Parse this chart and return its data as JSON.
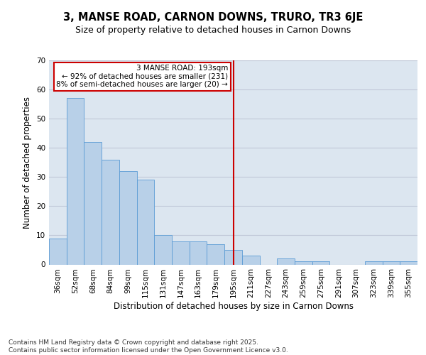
{
  "title_line1": "3, MANSE ROAD, CARNON DOWNS, TRURO, TR3 6JE",
  "title_line2": "Size of property relative to detached houses in Carnon Downs",
  "xlabel": "Distribution of detached houses by size in Carnon Downs",
  "ylabel": "Number of detached properties",
  "categories": [
    "36sqm",
    "52sqm",
    "68sqm",
    "84sqm",
    "99sqm",
    "115sqm",
    "131sqm",
    "147sqm",
    "163sqm",
    "179sqm",
    "195sqm",
    "211sqm",
    "227sqm",
    "243sqm",
    "259sqm",
    "275sqm",
    "291sqm",
    "307sqm",
    "323sqm",
    "339sqm",
    "355sqm"
  ],
  "values": [
    9,
    57,
    42,
    36,
    32,
    29,
    10,
    8,
    8,
    7,
    5,
    3,
    0,
    2,
    1,
    1,
    0,
    0,
    1,
    1,
    1
  ],
  "bar_color": "#b8d0e8",
  "bar_edge_color": "#5b9bd5",
  "vline_x": 10,
  "vline_color": "#cc0000",
  "annotation_text": "3 MANSE ROAD: 193sqm\n← 92% of detached houses are smaller (231)\n8% of semi-detached houses are larger (20) →",
  "annotation_box_color": "#cc0000",
  "ylim": [
    0,
    70
  ],
  "yticks": [
    0,
    10,
    20,
    30,
    40,
    50,
    60,
    70
  ],
  "grid_color": "#c0c8d8",
  "background_color": "#dce6f0",
  "footer_text": "Contains HM Land Registry data © Crown copyright and database right 2025.\nContains public sector information licensed under the Open Government Licence v3.0.",
  "title_fontsize": 10.5,
  "subtitle_fontsize": 9,
  "axis_label_fontsize": 8.5,
  "tick_fontsize": 7.5,
  "annotation_fontsize": 7.5,
  "footer_fontsize": 6.5
}
